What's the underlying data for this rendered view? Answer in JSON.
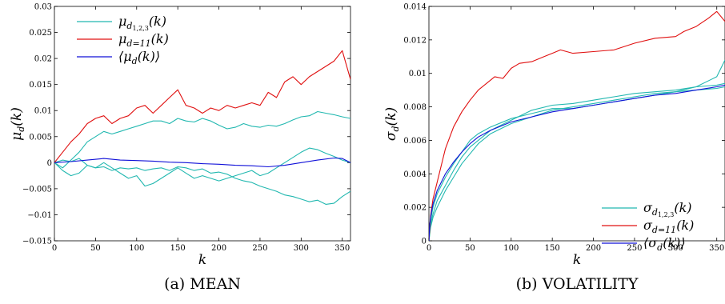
{
  "colors": {
    "cyan": "#22b8b0",
    "red": "#e01010",
    "blue": "#1010d8",
    "axis": "#000000"
  },
  "chart_data": [
    {
      "type": "line",
      "caption": "(a) MEAN",
      "xlabel": "k",
      "ylabel_main": "μ",
      "ylabel_sub": "d",
      "ylabel_arg": "(k)",
      "xlim": [
        0,
        360
      ],
      "ylim": [
        -0.015,
        0.03
      ],
      "xticks": [
        0,
        50,
        100,
        150,
        200,
        250,
        300,
        350
      ],
      "xtick_labels": [
        "0",
        "50",
        "100",
        "150",
        "200",
        "250",
        "300",
        "350"
      ],
      "yticks": [
        -0.015,
        -0.01,
        -0.005,
        0,
        0.005,
        0.01,
        0.015,
        0.02,
        0.025,
        0.03
      ],
      "ytick_labels": [
        "−0.015",
        "−0.01",
        "−0.005",
        "0",
        "0.005",
        "0.01",
        "0.015",
        "0.02",
        "0.025",
        "0.03"
      ],
      "grid": false,
      "legend_position": "top-left",
      "legend": [
        {
          "main": "μ",
          "sub": "d",
          "subsub": "1,2,3",
          "arg": "(k)",
          "color": "#22b8b0"
        },
        {
          "main": "μ",
          "sub": "d=11",
          "subsub": "",
          "arg": "(k)",
          "color": "#e01010"
        },
        {
          "main": "⟨μ",
          "sub": "d",
          "subsub": "",
          "arg": "(k)⟩",
          "color": "#1010d8"
        }
      ],
      "series": [
        {
          "color": "#22b8b0",
          "x": [
            0,
            10,
            20,
            30,
            40,
            50,
            60,
            70,
            80,
            90,
            100,
            110,
            120,
            130,
            140,
            150,
            160,
            170,
            180,
            190,
            200,
            210,
            220,
            230,
            240,
            250,
            260,
            270,
            280,
            290,
            300,
            310,
            320,
            330,
            340,
            350,
            360
          ],
          "y": [
            0,
            -0.001,
            0.0005,
            0.002,
            0.004,
            0.005,
            0.006,
            0.0055,
            0.006,
            0.0065,
            0.007,
            0.0075,
            0.008,
            0.008,
            0.0075,
            0.0085,
            0.008,
            0.0078,
            0.0085,
            0.008,
            0.0072,
            0.0065,
            0.0068,
            0.0075,
            0.007,
            0.0068,
            0.0072,
            0.007,
            0.0075,
            0.0082,
            0.0088,
            0.009,
            0.0098,
            0.0095,
            0.0092,
            0.0088,
            0.0085
          ]
        },
        {
          "color": "#22b8b0",
          "x": [
            0,
            10,
            20,
            30,
            40,
            50,
            60,
            70,
            80,
            90,
            100,
            110,
            120,
            130,
            140,
            150,
            160,
            170,
            180,
            190,
            200,
            210,
            220,
            230,
            240,
            250,
            260,
            270,
            280,
            290,
            300,
            310,
            320,
            330,
            340,
            350,
            360
          ],
          "y": [
            0,
            -0.0015,
            -0.0025,
            -0.002,
            -0.0005,
            -0.001,
            0,
            -0.001,
            -0.002,
            -0.003,
            -0.0025,
            -0.0045,
            -0.004,
            -0.003,
            -0.002,
            -0.001,
            -0.002,
            -0.003,
            -0.0025,
            -0.003,
            -0.0035,
            -0.003,
            -0.0025,
            -0.002,
            -0.0015,
            -0.0025,
            -0.002,
            -0.001,
            0,
            0.001,
            0.002,
            0.0028,
            0.0025,
            0.0018,
            0.0012,
            0.0005,
            0
          ]
        },
        {
          "color": "#22b8b0",
          "x": [
            0,
            10,
            20,
            30,
            40,
            50,
            60,
            70,
            80,
            90,
            100,
            110,
            120,
            130,
            140,
            150,
            160,
            170,
            180,
            190,
            200,
            210,
            220,
            230,
            240,
            250,
            260,
            270,
            280,
            290,
            300,
            310,
            320,
            330,
            340,
            350,
            360
          ],
          "y": [
            0,
            0.0005,
            0.0002,
            0.0008,
            -0.0005,
            -0.001,
            -0.0008,
            -0.0015,
            -0.001,
            -0.0012,
            -0.001,
            -0.0015,
            -0.0012,
            -0.001,
            -0.0015,
            -0.0008,
            -0.001,
            -0.0015,
            -0.0012,
            -0.002,
            -0.0018,
            -0.0022,
            -0.003,
            -0.0035,
            -0.0038,
            -0.0045,
            -0.005,
            -0.0055,
            -0.0062,
            -0.0065,
            -0.007,
            -0.0075,
            -0.0072,
            -0.008,
            -0.0078,
            -0.0065,
            -0.0055
          ]
        },
        {
          "color": "#e01010",
          "x": [
            0,
            10,
            20,
            30,
            40,
            50,
            60,
            70,
            80,
            90,
            100,
            110,
            120,
            130,
            140,
            150,
            160,
            170,
            180,
            190,
            200,
            210,
            220,
            230,
            240,
            250,
            260,
            270,
            280,
            290,
            300,
            310,
            320,
            330,
            340,
            350,
            360
          ],
          "y": [
            0,
            0.002,
            0.004,
            0.0055,
            0.0075,
            0.0085,
            0.009,
            0.0075,
            0.0085,
            0.009,
            0.0105,
            0.011,
            0.0095,
            0.011,
            0.0125,
            0.014,
            0.011,
            0.0105,
            0.0095,
            0.0105,
            0.01,
            0.011,
            0.0105,
            0.011,
            0.0115,
            0.011,
            0.0135,
            0.0125,
            0.0155,
            0.0165,
            0.015,
            0.0165,
            0.0175,
            0.0185,
            0.0195,
            0.0215,
            0.016
          ]
        },
        {
          "color": "#1010d8",
          "x": [
            0,
            20,
            40,
            60,
            80,
            100,
            120,
            140,
            160,
            180,
            200,
            220,
            240,
            260,
            280,
            300,
            320,
            340,
            350,
            360
          ],
          "y": [
            0,
            0.0002,
            0.0005,
            0.0008,
            0.0005,
            0.0004,
            0.0003,
            0.0001,
            0,
            -0.0002,
            -0.0003,
            -0.0005,
            -0.0006,
            -0.0008,
            -0.0005,
            0,
            0.0005,
            0.0009,
            0.0008,
            0
          ]
        }
      ]
    },
    {
      "type": "line",
      "caption": "(b) VOLATILITY",
      "xlabel": "k",
      "ylabel_main": "σ",
      "ylabel_sub": "d",
      "ylabel_arg": "(k)",
      "xlim": [
        0,
        360
      ],
      "ylim": [
        0,
        0.014
      ],
      "xticks": [
        0,
        50,
        100,
        150,
        200,
        250,
        300,
        350
      ],
      "xtick_labels": [
        "0",
        "50",
        "100",
        "150",
        "200",
        "250",
        "300",
        "350"
      ],
      "yticks": [
        0,
        0.002,
        0.004,
        0.006,
        0.008,
        0.01,
        0.012,
        0.014
      ],
      "ytick_labels": [
        "0",
        "0.002",
        "0.004",
        "0.006",
        "0.008",
        "0.01",
        "0.012",
        "0.014"
      ],
      "grid": false,
      "legend_position": "bottom-right",
      "legend": [
        {
          "main": "σ",
          "sub": "d",
          "subsub": "1,2,3",
          "arg": "(k)",
          "color": "#22b8b0"
        },
        {
          "main": "σ",
          "sub": "d=11",
          "subsub": "",
          "arg": "(k)",
          "color": "#e01010"
        },
        {
          "main": "⟨σ",
          "sub": "d",
          "subsub": "",
          "arg": "(k)⟩",
          "color": "#1010d8"
        }
      ],
      "series": [
        {
          "color": "#22b8b0",
          "x": [
            0,
            2,
            5,
            10,
            20,
            30,
            40,
            50,
            60,
            75,
            100,
            125,
            150,
            175,
            200,
            225,
            250,
            275,
            300,
            325,
            350,
            360
          ],
          "y": [
            0,
            0.0012,
            0.002,
            0.0028,
            0.0038,
            0.0046,
            0.0053,
            0.006,
            0.0064,
            0.0068,
            0.0073,
            0.0076,
            0.0079,
            0.0079,
            0.0081,
            0.0083,
            0.0085,
            0.0087,
            0.0089,
            0.0092,
            0.0098,
            0.0108
          ]
        },
        {
          "color": "#22b8b0",
          "x": [
            0,
            2,
            5,
            10,
            20,
            30,
            40,
            50,
            60,
            75,
            100,
            125,
            150,
            175,
            200,
            225,
            250,
            275,
            300,
            325,
            350,
            360
          ],
          "y": [
            0,
            0.001,
            0.0016,
            0.0024,
            0.0033,
            0.0042,
            0.005,
            0.0056,
            0.006,
            0.0066,
            0.0072,
            0.0078,
            0.0081,
            0.0082,
            0.0084,
            0.0086,
            0.0088,
            0.0089,
            0.009,
            0.0092,
            0.0093,
            0.0094
          ]
        },
        {
          "color": "#22b8b0",
          "x": [
            0,
            2,
            5,
            10,
            20,
            30,
            40,
            50,
            60,
            75,
            100,
            125,
            150,
            175,
            200,
            225,
            250,
            275,
            300,
            325,
            350,
            360
          ],
          "y": [
            0,
            0.0008,
            0.0014,
            0.002,
            0.003,
            0.0038,
            0.0046,
            0.0052,
            0.0058,
            0.0064,
            0.007,
            0.0074,
            0.0078,
            0.008,
            0.0082,
            0.0084,
            0.0086,
            0.0088,
            0.0089,
            0.009,
            0.0091,
            0.0092
          ]
        },
        {
          "color": "#e01010",
          "x": [
            0,
            2,
            5,
            10,
            20,
            30,
            40,
            50,
            60,
            70,
            80,
            90,
            100,
            110,
            125,
            140,
            150,
            160,
            175,
            200,
            225,
            250,
            275,
            300,
            310,
            325,
            340,
            350,
            360
          ],
          "y": [
            0,
            0.0015,
            0.0025,
            0.0035,
            0.0055,
            0.0068,
            0.0077,
            0.0084,
            0.009,
            0.0094,
            0.0098,
            0.0097,
            0.0103,
            0.0106,
            0.0107,
            0.011,
            0.0112,
            0.0114,
            0.0112,
            0.0113,
            0.0114,
            0.0118,
            0.0121,
            0.0122,
            0.0125,
            0.0128,
            0.0133,
            0.0137,
            0.0131
          ]
        },
        {
          "color": "#1010d8",
          "x": [
            0,
            1,
            3,
            5,
            10,
            20,
            30,
            40,
            50,
            60,
            75,
            100,
            125,
            150,
            175,
            200,
            225,
            250,
            275,
            300,
            325,
            350,
            360
          ],
          "y": [
            0,
            0.001,
            0.0017,
            0.0022,
            0.003,
            0.004,
            0.0047,
            0.0053,
            0.0058,
            0.0062,
            0.0066,
            0.0071,
            0.0074,
            0.0077,
            0.0079,
            0.0081,
            0.0083,
            0.0085,
            0.0087,
            0.0088,
            0.009,
            0.0092,
            0.0093
          ]
        }
      ]
    }
  ]
}
